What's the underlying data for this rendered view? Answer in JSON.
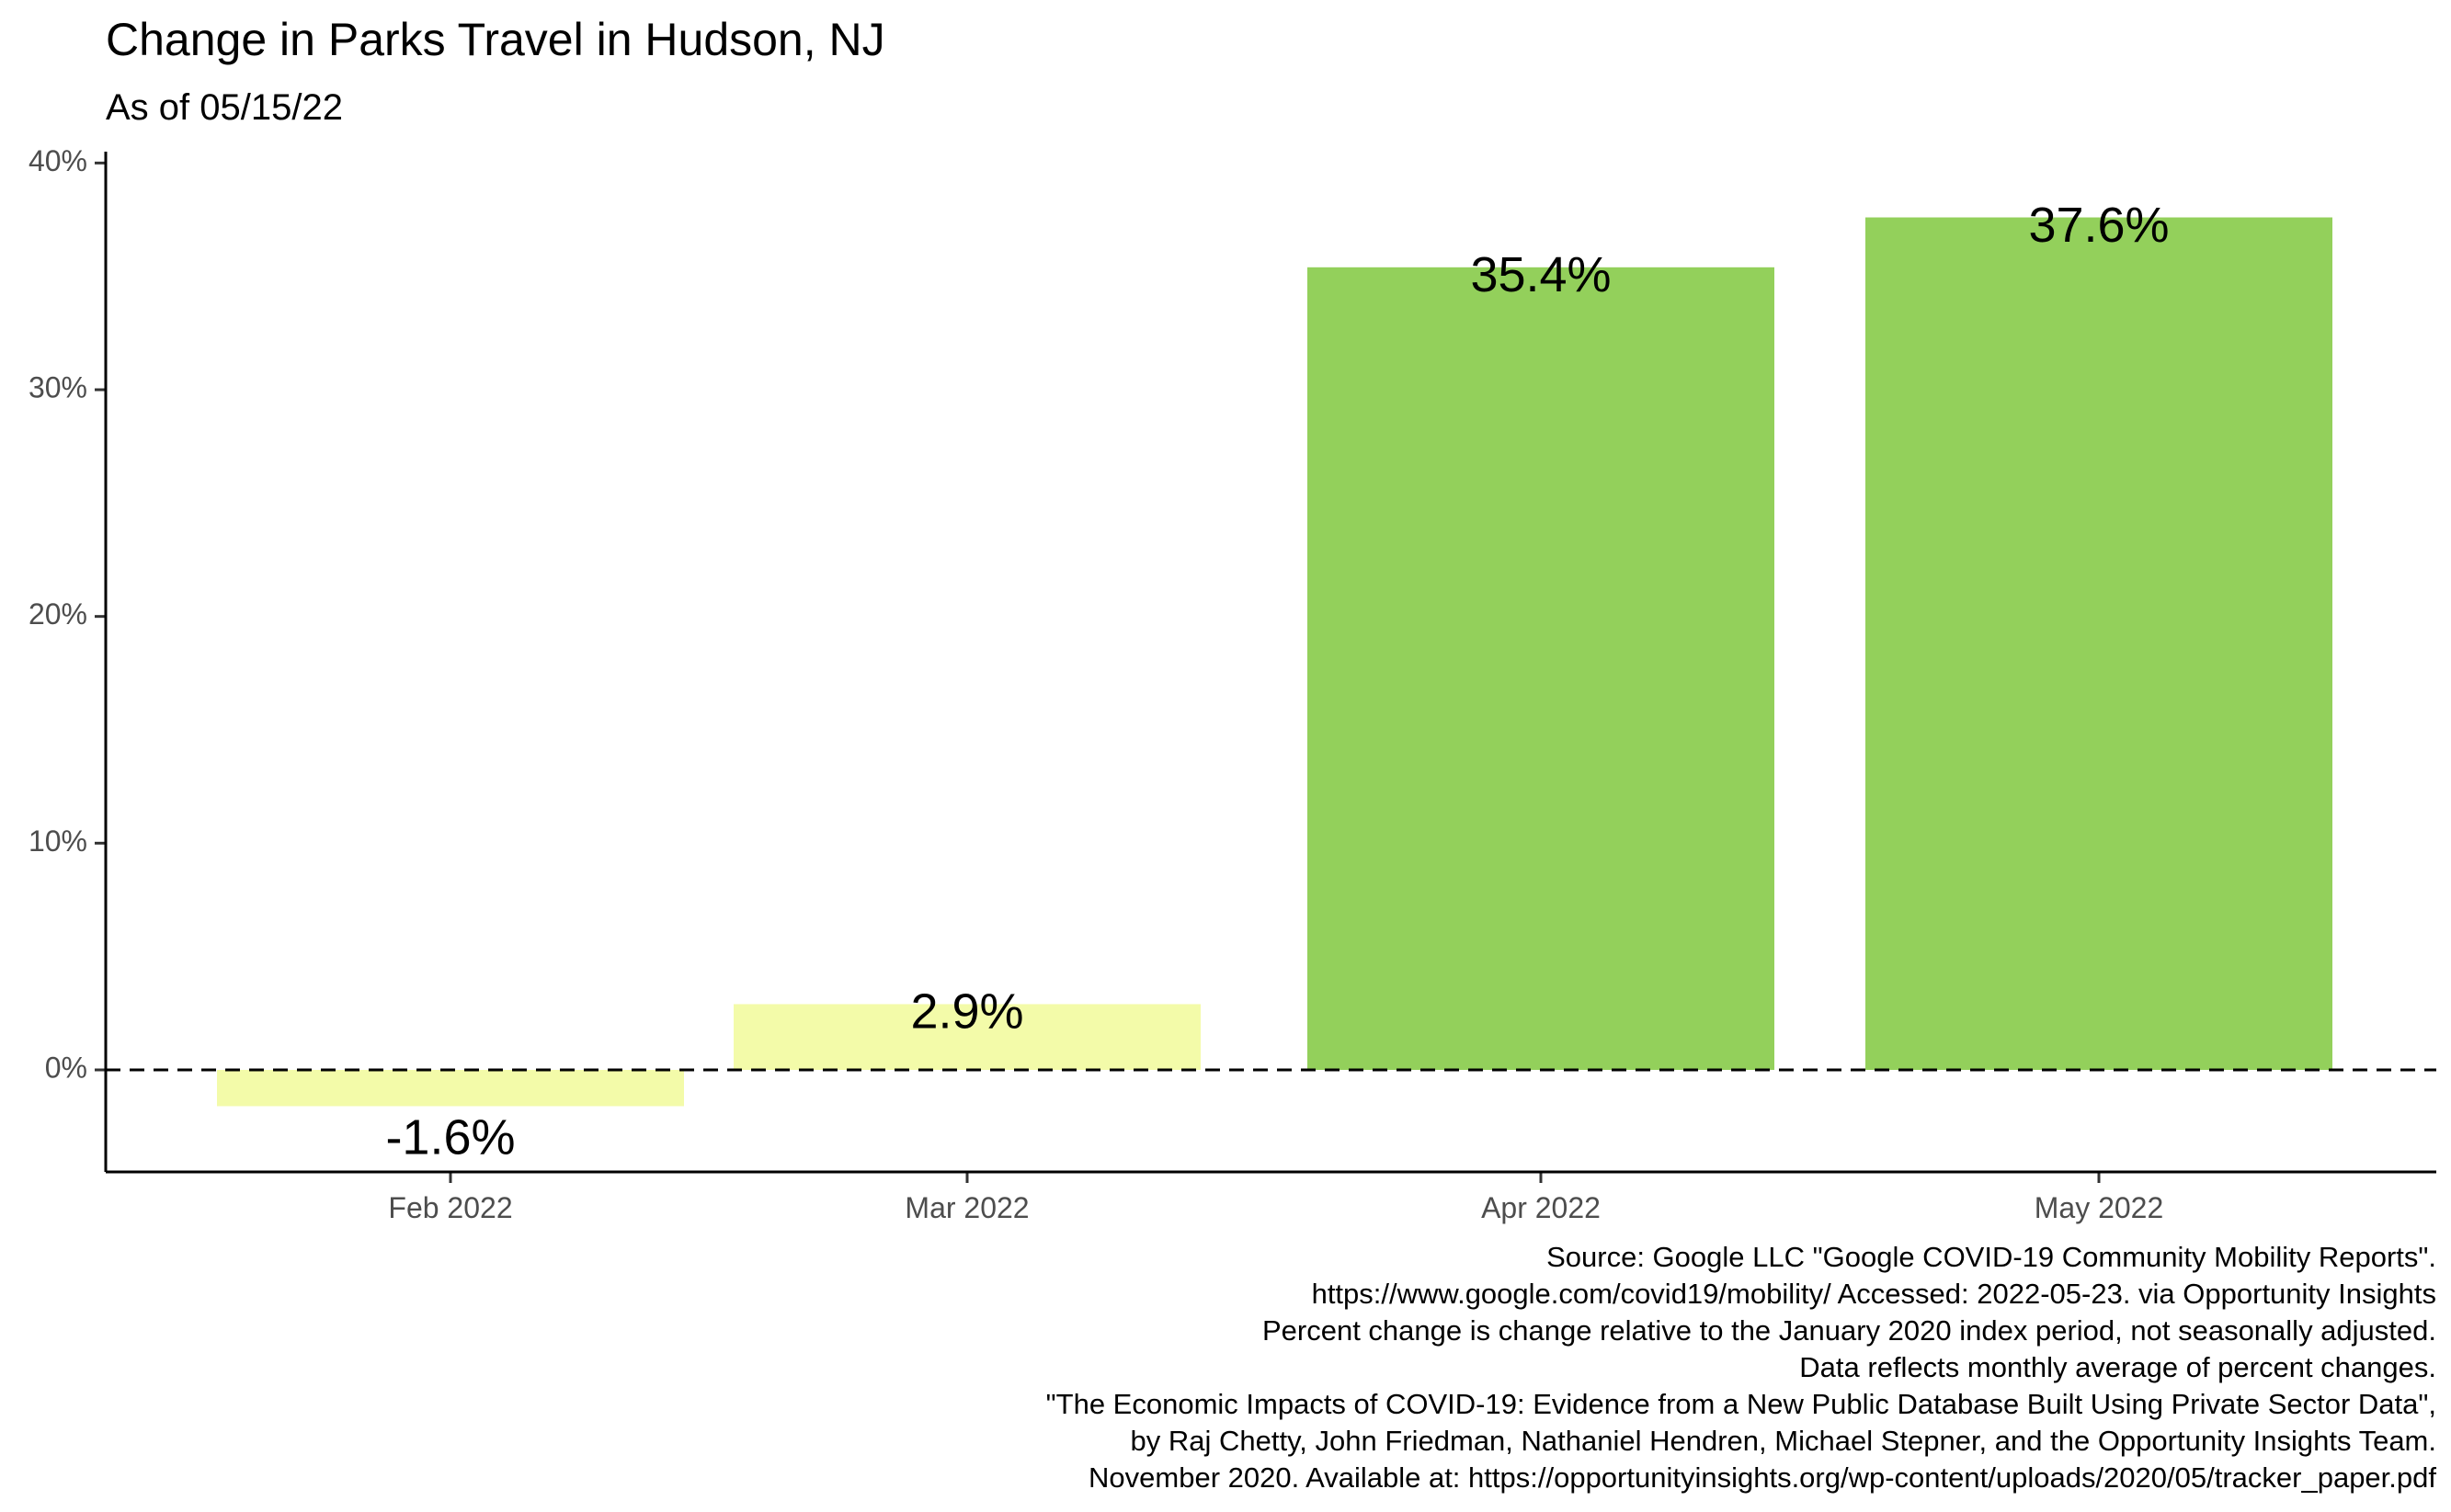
{
  "chart_data": {
    "type": "bar",
    "title": "Change in Parks Travel in Hudson, NJ",
    "subtitle": "As of 05/15/22",
    "categories": [
      "Feb 2022",
      "Mar 2022",
      "Apr 2022",
      "May 2022"
    ],
    "values": [
      -1.6,
      2.9,
      35.4,
      37.6
    ],
    "data_labels": [
      "-1.6%",
      "2.9%",
      "35.4%",
      "37.6%"
    ],
    "bar_colors": [
      "#f3fba9",
      "#f3fba9",
      "#93d05b",
      "#93d05b"
    ],
    "xlabel": "",
    "ylabel": "",
    "ylim": [
      -4.5,
      40.5
    ],
    "yticks": [
      0,
      10,
      20,
      30,
      40
    ],
    "ytick_labels": [
      "0%",
      "10%",
      "20%",
      "30%",
      "40%"
    ],
    "reference_line": {
      "y": 0,
      "style": "dashed"
    },
    "grid": false,
    "legend": "none",
    "caption": [
      "Source: Google LLC \"Google COVID-19 Community Mobility Reports\".",
      "https://www.google.com/covid19/mobility/ Accessed: 2022-05-23. via Opportunity Insights",
      "Percent change is change relative to the January 2020 index period, not seasonally adjusted.",
      "Data reflects monthly average of percent changes.",
      "\"The Economic Impacts of COVID-19: Evidence from a New Public Database Built Using Private Sector Data\",",
      "by Raj Chetty, John Friedman, Nathaniel Hendren, Michael Stepner, and the Opportunity Insights Team.",
      "November 2020. Available at: https://opportunityinsights.org/wp-content/uploads/2020/05/tracker_paper.pdf"
    ]
  }
}
